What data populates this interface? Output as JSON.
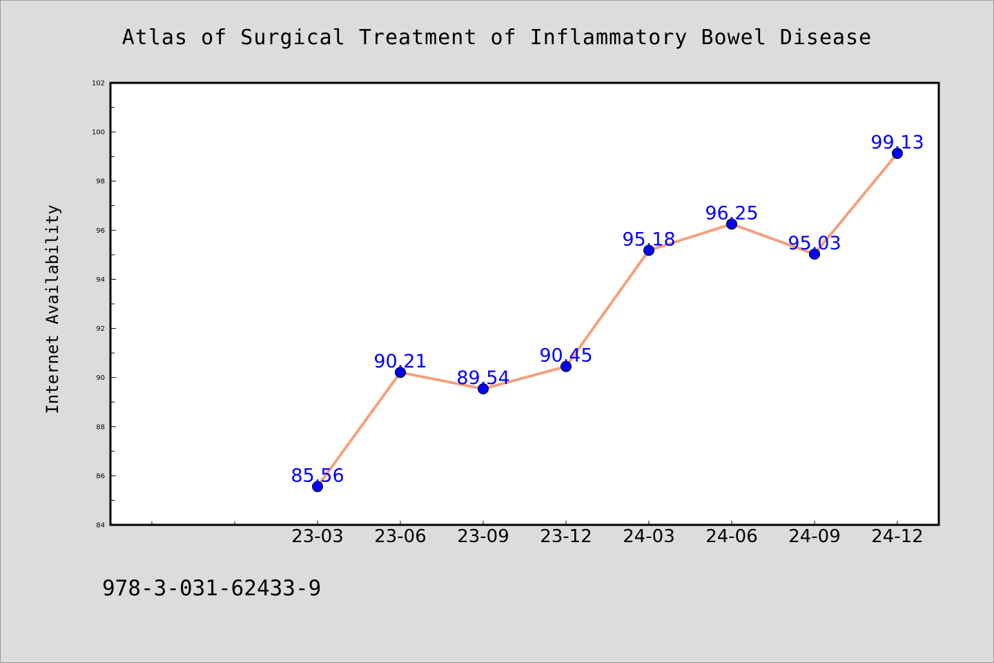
{
  "page": {
    "background": "#dcdcdc",
    "footer_text": "978-3-031-62433-9"
  },
  "chart_data": {
    "type": "line",
    "title": "Atlas of Surgical Treatment of Inflammatory Bowel Disease",
    "xlabel": "",
    "ylabel": "Internet Availability",
    "ylim": [
      84,
      102
    ],
    "yticks": [
      84,
      86,
      88,
      90,
      92,
      94,
      96,
      98,
      100,
      102
    ],
    "categories": [
      "23-03",
      "23-06",
      "23-09",
      "23-12",
      "24-03",
      "24-06",
      "24-09",
      "24-12"
    ],
    "series": [
      {
        "values": [
          85.56,
          90.21,
          89.54,
          90.45,
          95.18,
          96.25,
          95.03,
          99.13
        ],
        "labels": [
          "85.56",
          "90.21",
          "89.54",
          "90.45",
          "95.18",
          "96.25",
          "95.03",
          "99.13"
        ],
        "line_color": "#f4a07c",
        "marker_color": "#0000ff"
      }
    ],
    "grid": false,
    "legend": "none"
  }
}
